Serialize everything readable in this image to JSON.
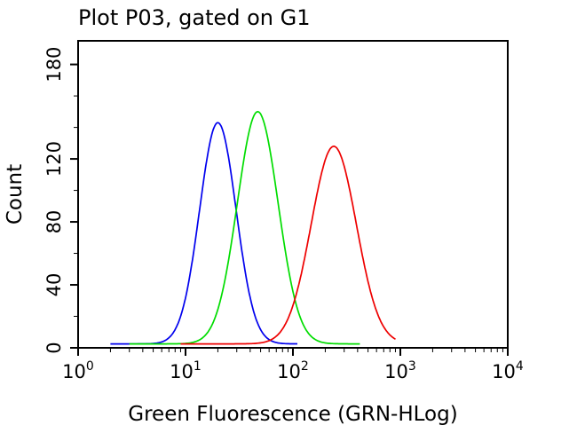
{
  "chart_data": {
    "type": "line",
    "subtype": "flow-cytometry-histogram",
    "title": "Plot P03, gated on G1",
    "xlabel": "Green Fluorescence (GRN-HLog)",
    "ylabel": "Count",
    "x_scale": "log10",
    "x_range": [
      1,
      10000
    ],
    "y_range": [
      0,
      195
    ],
    "x_major_ticks": [
      1,
      10,
      100,
      1000,
      10000
    ],
    "x_major_tick_labels": [
      {
        "base": "10",
        "exp": "0"
      },
      {
        "base": "10",
        "exp": "1"
      },
      {
        "base": "10",
        "exp": "2"
      },
      {
        "base": "10",
        "exp": "3"
      },
      {
        "base": "10",
        "exp": "4"
      }
    ],
    "y_major_ticks": [
      0,
      40,
      80,
      120,
      180
    ],
    "y_minor_ticks": [
      20,
      60,
      100,
      140,
      160
    ],
    "grid": false,
    "legend": "none",
    "baseline_count": 2.5,
    "series": [
      {
        "name": "blue-population",
        "color": "#0000ee",
        "peak_x": 20,
        "peak_count": 143,
        "sigma_decades": 0.17,
        "span": [
          2,
          110
        ]
      },
      {
        "name": "green-population",
        "color": "#00dd00",
        "peak_x": 47,
        "peak_count": 150,
        "sigma_decades": 0.19,
        "span": [
          3,
          420
        ]
      },
      {
        "name": "red-population",
        "color": "#ee0000",
        "peak_x": 240,
        "peak_count": 128,
        "sigma_decades": 0.21,
        "span": [
          9,
          900
        ]
      }
    ],
    "colors": {
      "axis": "#000000",
      "plot_background": "#ffffff",
      "figure_background": "#ffffff"
    }
  }
}
